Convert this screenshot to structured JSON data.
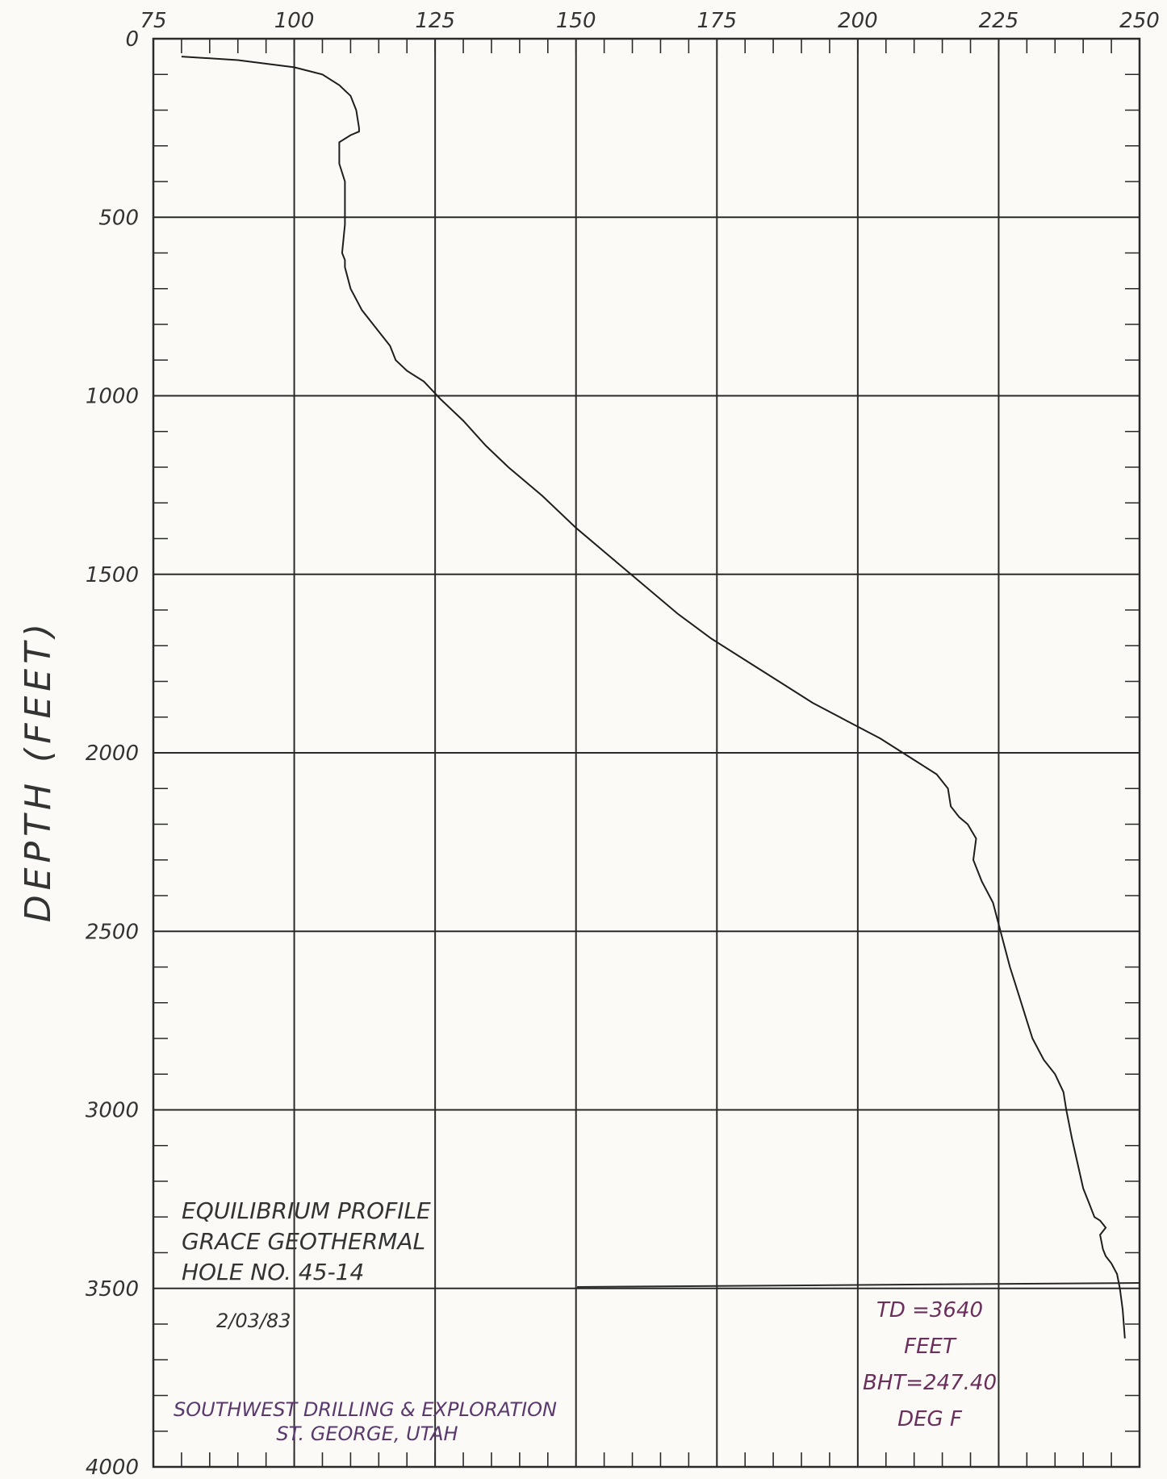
{
  "chart_data": {
    "type": "line",
    "title": "",
    "xlabel": "",
    "ylabel": "DEPTH (FEET)",
    "xlim": [
      75,
      250
    ],
    "ylim": [
      0,
      4000
    ],
    "y_inverted": true,
    "x_ticks": [
      75,
      100,
      125,
      150,
      175,
      200,
      225,
      250
    ],
    "y_ticks": [
      0,
      500,
      1000,
      1500,
      2000,
      2500,
      3000,
      3500,
      4000
    ],
    "grid": true,
    "series": [
      {
        "name": "",
        "x": [
          80,
          90,
          100,
          105,
          108,
          110,
          111,
          111.5,
          111.5,
          110,
          108,
          108,
          109,
          109,
          109,
          108.5,
          109,
          109,
          110,
          112,
          114,
          116,
          117,
          118,
          120,
          123,
          126,
          130,
          134,
          138,
          144,
          150,
          156,
          162,
          168,
          174,
          180,
          186,
          192,
          198,
          204,
          210,
          214,
          216,
          216.5,
          218,
          219.5,
          221,
          220.5,
          222,
          224,
          225,
          226,
          227,
          228,
          229,
          230,
          231,
          233,
          235,
          236.5,
          237,
          238,
          239,
          240,
          241,
          242,
          243,
          244,
          243,
          243.5,
          244,
          245,
          246,
          246.5,
          247,
          247.4
        ],
        "y": [
          50,
          60,
          80,
          100,
          130,
          160,
          200,
          250,
          260,
          270,
          290,
          350,
          400,
          460,
          520,
          600,
          620,
          640,
          700,
          760,
          800,
          840,
          860,
          900,
          930,
          960,
          1010,
          1070,
          1140,
          1200,
          1280,
          1370,
          1450,
          1530,
          1610,
          1680,
          1740,
          1800,
          1860,
          1910,
          1960,
          2020,
          2060,
          2100,
          2150,
          2180,
          2200,
          2240,
          2300,
          2360,
          2420,
          2480,
          2540,
          2600,
          2650,
          2700,
          2750,
          2800,
          2860,
          2900,
          2950,
          3000,
          3080,
          3150,
          3220,
          3260,
          3300,
          3310,
          3330,
          3350,
          3390,
          3410,
          3430,
          3460,
          3500,
          3560,
          3640
        ]
      }
    ]
  },
  "notes": {
    "profile_lines": [
      "EQUILIBRIUM PROFILE",
      "GRACE GEOTHERMAL",
      "HOLE NO. 45-14"
    ],
    "date": "2/03/83",
    "company_lines": [
      "SOUTHWEST DRILLING & EXPLORATION",
      "ST. GEORGE, UTAH"
    ],
    "td_lines": [
      "TD =3640",
      "FEET",
      "BHT=247.40",
      "DEG F"
    ]
  },
  "colors": {
    "grid": "#2a2a2a",
    "curve": "#1e1e1e",
    "paper": "#fbfaf6",
    "company_text": "#5a3a6e",
    "td_text": "#6a2f5a"
  }
}
